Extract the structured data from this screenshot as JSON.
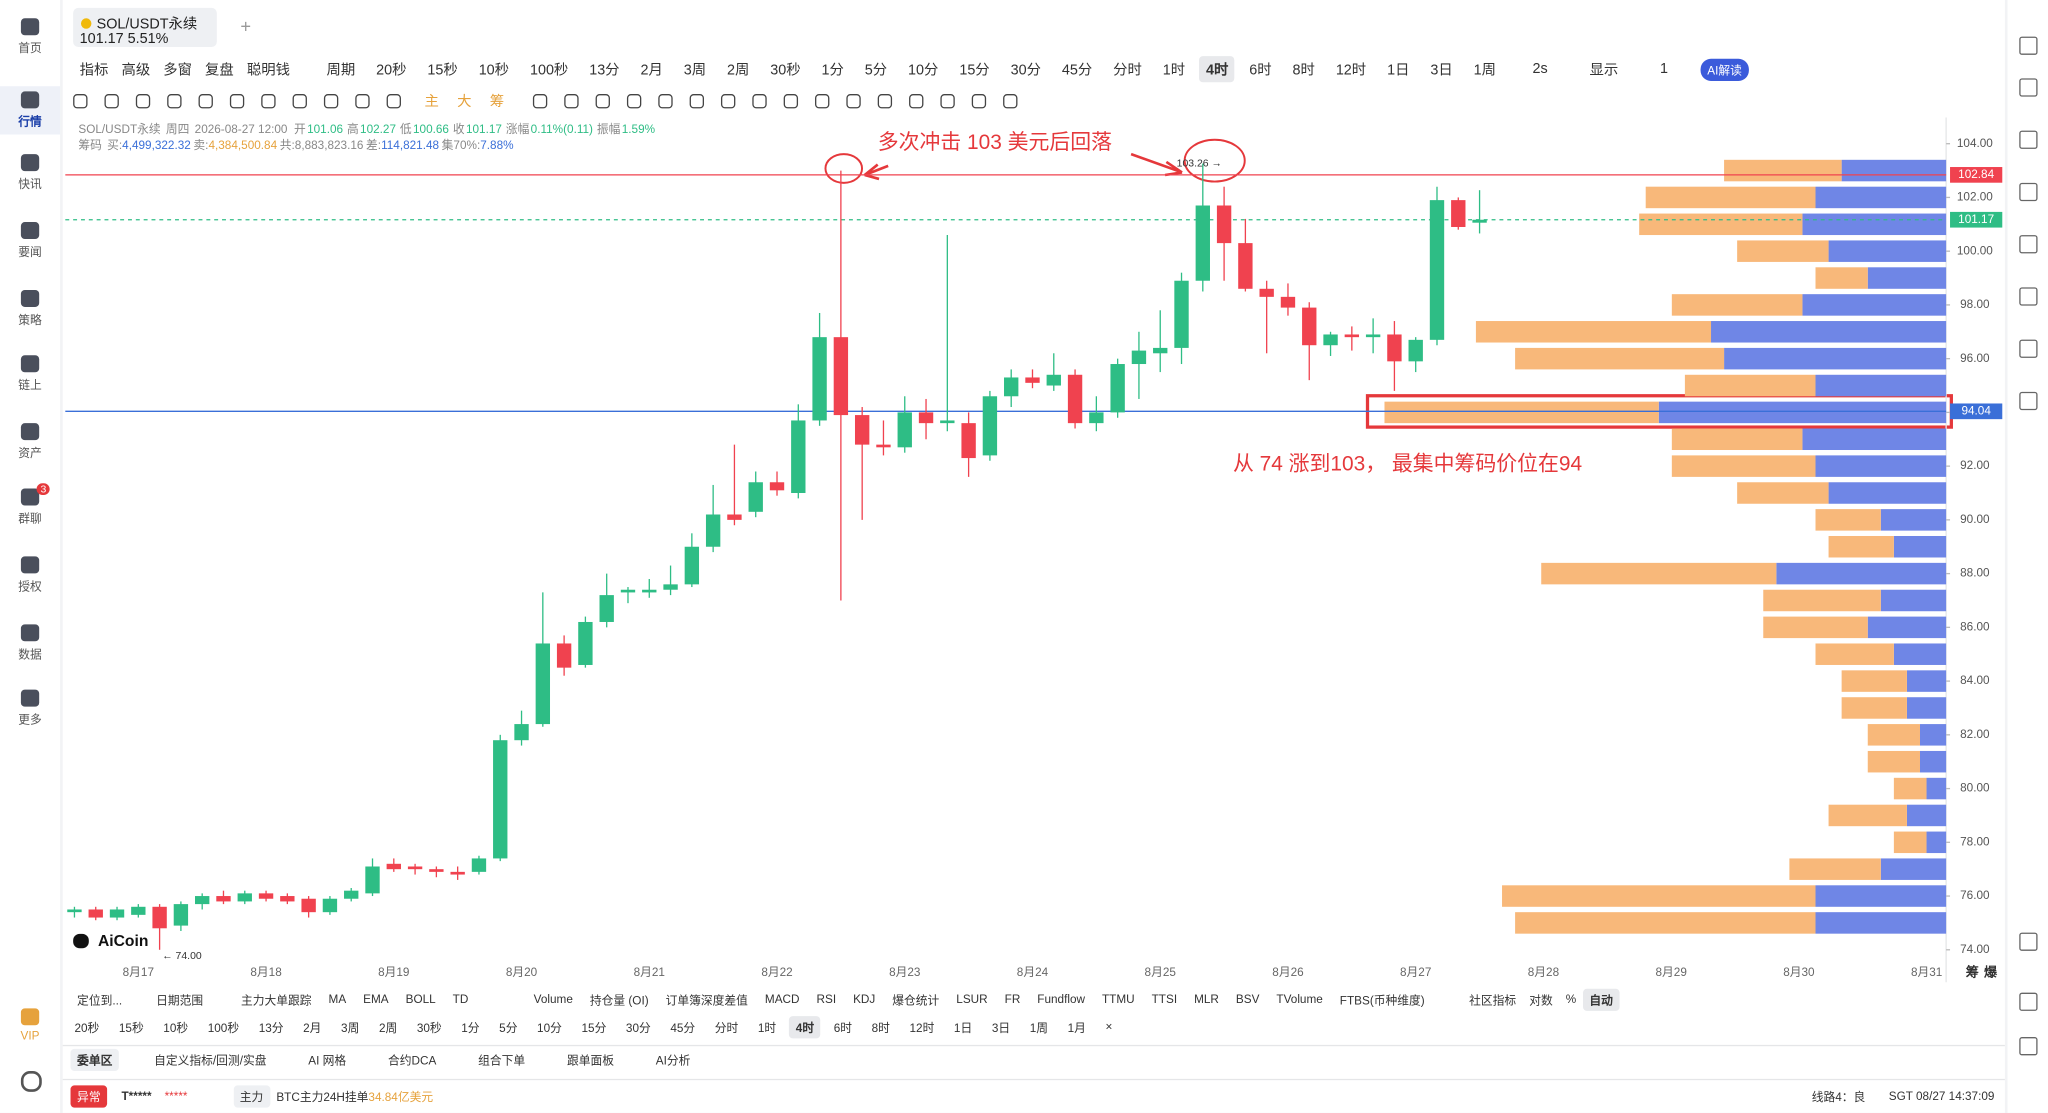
{
  "sidebar": [
    "首页",
    "行情",
    "快讯",
    "要闻",
    "策略",
    "链上",
    "资产",
    "群聊",
    "授权",
    "数据",
    "更多",
    "VIP"
  ],
  "sidebar_badge": "3",
  "tab": {
    "symbol": "SOL/USDT永续",
    "price": "101.17",
    "change": "5.51%"
  },
  "toolbar": {
    "tools": [
      "指标",
      "高级",
      "多窗",
      "复盘",
      "聪明钱",
      "周期"
    ],
    "periods": [
      "20秒",
      "15秒",
      "10秒",
      "100秒",
      "13分",
      "2月",
      "3周",
      "2周",
      "30秒",
      "1分",
      "5分",
      "10分",
      "15分",
      "30分",
      "45分",
      "分时",
      "1时",
      "4时",
      "6时",
      "8时",
      "12时",
      "1日",
      "3日",
      "1周"
    ],
    "selected_period": 17,
    "extra": [
      "2s",
      "显示",
      "1",
      "AI解读"
    ]
  },
  "draw_tools": [
    "主",
    "大",
    "筹"
  ],
  "info": {
    "symbol": "SOL/USDT永续",
    "day": "周四",
    "time": "2026-08-27 12:00",
    "fields": [
      [
        "开",
        "101.06"
      ],
      [
        "高",
        "102.27"
      ],
      [
        "低",
        "100.66"
      ],
      [
        "收",
        "101.17"
      ],
      [
        "涨幅",
        "0.11%(0.11)"
      ],
      [
        "振幅",
        "1.59%"
      ]
    ],
    "chips_label": "筹码",
    "chips": [
      [
        "买:",
        "4,499,322.32"
      ],
      [
        "卖:",
        "4,384,500.84"
      ],
      [
        "共:",
        "8,883,823.16"
      ],
      [
        "差:",
        "114,821.48"
      ],
      [
        "集70%:",
        "7.88%"
      ]
    ]
  },
  "chart_data": {
    "type": "candlestick",
    "categories": [
      null,
      null,
      null,
      "8月17",
      null,
      null,
      null,
      null,
      null,
      "8月18",
      null,
      null,
      null,
      null,
      null,
      "8月19",
      null,
      null,
      null,
      null,
      null,
      "8月20",
      null,
      null,
      null,
      null,
      null,
      "8月21",
      null,
      null,
      null,
      null,
      null,
      "8月22",
      null,
      null,
      null,
      null,
      null,
      "8月23",
      null,
      null,
      null,
      null,
      null,
      "8月24",
      null,
      null,
      null,
      null,
      null,
      "8月25",
      null,
      null,
      null,
      null,
      null,
      "8月26",
      null,
      null,
      null,
      null,
      null,
      "8月27",
      null,
      null,
      null,
      null,
      null,
      "8月28",
      null,
      null,
      null,
      null,
      null,
      "8月29",
      null,
      null,
      null,
      null,
      null,
      "8月30",
      null,
      null,
      null,
      null,
      null,
      "8月31"
    ],
    "open": [
      75.4,
      75.5,
      75.2,
      75.3,
      75.6,
      74.9,
      75.7,
      76.0,
      75.8,
      76.1,
      76.0,
      75.9,
      75.4,
      75.9,
      76.1,
      77.2,
      77.1,
      77.0,
      76.9,
      76.9,
      77.4,
      81.8,
      82.4,
      85.4,
      84.6,
      86.2,
      87.3,
      87.3,
      87.4,
      87.6,
      89.0,
      90.2,
      90.3,
      91.4,
      91.0,
      93.7,
      96.8,
      93.9,
      92.8,
      92.7,
      94.0,
      93.6,
      93.6,
      92.4,
      94.6,
      95.3,
      95.0,
      95.4,
      93.6,
      94.0,
      95.8,
      96.2,
      96.4,
      98.9,
      101.7,
      100.3,
      98.6,
      98.3,
      97.9,
      96.5,
      96.9,
      96.8,
      96.9,
      95.9,
      96.7,
      101.9,
      101.06,
      null,
      null,
      null,
      null,
      null,
      null,
      null,
      null,
      null,
      null,
      null,
      null,
      null,
      null,
      null,
      null,
      null,
      null,
      null,
      null,
      null
    ],
    "high": [
      75.6,
      75.6,
      75.6,
      75.7,
      75.7,
      75.8,
      76.1,
      76.2,
      76.2,
      76.2,
      76.1,
      76.0,
      76.0,
      76.3,
      77.4,
      77.4,
      77.2,
      77.1,
      77.1,
      77.5,
      82.0,
      82.9,
      87.3,
      85.7,
      86.4,
      88.0,
      87.5,
      87.8,
      88.3,
      89.5,
      91.3,
      92.8,
      91.8,
      91.8,
      94.3,
      97.7,
      103.0,
      94.2,
      93.7,
      94.6,
      94.5,
      100.6,
      94.0,
      94.8,
      95.6,
      95.6,
      96.2,
      95.6,
      94.6,
      96.0,
      97.0,
      97.8,
      99.2,
      103.26,
      102.4,
      101.2,
      98.9,
      98.8,
      98.1,
      97.0,
      97.2,
      97.5,
      97.4,
      96.8,
      102.4,
      102.0,
      102.27,
      null,
      null,
      null,
      null,
      null,
      null,
      null,
      null,
      null,
      null,
      null,
      null,
      null,
      null,
      null,
      null,
      null,
      null,
      null,
      null,
      null
    ],
    "low": [
      75.2,
      75.1,
      75.1,
      75.2,
      74.0,
      74.7,
      75.5,
      75.7,
      75.7,
      75.8,
      75.7,
      75.2,
      75.3,
      75.8,
      76.0,
      76.9,
      76.8,
      76.7,
      76.6,
      76.8,
      77.3,
      81.6,
      82.3,
      84.2,
      84.5,
      86.0,
      86.9,
      87.1,
      87.2,
      87.5,
      88.8,
      89.8,
      90.1,
      90.9,
      90.8,
      93.5,
      87.0,
      90.0,
      92.4,
      92.5,
      93.0,
      93.3,
      91.6,
      92.2,
      94.2,
      94.9,
      94.8,
      93.4,
      93.3,
      93.8,
      94.5,
      95.5,
      95.8,
      98.5,
      98.9,
      98.5,
      96.2,
      97.6,
      95.2,
      96.1,
      96.3,
      96.2,
      94.8,
      95.5,
      96.5,
      100.8,
      100.66,
      null,
      null,
      null,
      null,
      null,
      null,
      null,
      null,
      null,
      null,
      null,
      null,
      null,
      null,
      null,
      null,
      null,
      null,
      null,
      null,
      null
    ],
    "close": [
      75.5,
      75.2,
      75.5,
      75.6,
      74.8,
      75.7,
      76.0,
      75.8,
      76.1,
      75.9,
      75.8,
      75.4,
      75.9,
      76.2,
      77.1,
      77.0,
      77.0,
      76.9,
      76.8,
      77.4,
      81.8,
      82.4,
      85.4,
      84.5,
      86.2,
      87.2,
      87.4,
      87.4,
      87.6,
      89.0,
      90.2,
      90.0,
      91.4,
      91.1,
      93.7,
      96.8,
      93.9,
      92.8,
      92.7,
      94.0,
      93.6,
      93.7,
      92.3,
      94.6,
      95.3,
      95.1,
      95.4,
      93.6,
      94.0,
      95.8,
      96.3,
      96.4,
      98.9,
      101.7,
      100.3,
      98.6,
      98.3,
      97.9,
      96.5,
      96.9,
      96.8,
      96.9,
      95.9,
      96.7,
      101.9,
      100.9,
      101.17,
      null,
      null,
      null,
      null,
      null,
      null,
      null,
      null,
      null,
      null,
      null,
      null,
      null,
      null,
      null,
      null,
      null,
      null,
      null,
      null,
      null
    ],
    "up_color": "#2ebd85",
    "down_color": "#f0424f",
    "ylim": [
      73.62,
      104.73
    ],
    "yticks": [
      {
        "value": 74,
        "label": "74.00"
      },
      {
        "value": 76,
        "label": "76.00"
      },
      {
        "value": 78,
        "label": "78.00"
      },
      {
        "value": 80,
        "label": "80.00"
      },
      {
        "value": 82,
        "label": "82.00"
      },
      {
        "value": 84,
        "label": "84.00"
      },
      {
        "value": 86,
        "label": "86.00"
      },
      {
        "value": 88,
        "label": "88.00"
      },
      {
        "value": 90,
        "label": "90.00"
      },
      {
        "value": 92,
        "label": "92.00"
      },
      {
        "value": 94,
        "label": "94.00"
      },
      {
        "value": 96,
        "label": "96.00"
      },
      {
        "value": 98,
        "label": "98.00"
      },
      {
        "value": 100,
        "label": "100.00"
      },
      {
        "value": 102,
        "label": "102.00"
      },
      {
        "value": 104,
        "label": "104.00"
      }
    ],
    "grid": false,
    "price_lines": [
      {
        "value": 102.84,
        "color": "#f0424f"
      },
      {
        "value": 101.17,
        "color": "#2ebd85"
      },
      {
        "value": 94.04,
        "color": "#3a6fd8"
      }
    ],
    "high_label": "103.26 →",
    "low_label": "← 74.00",
    "annotations": [
      "多次冲击 103 美元后回落",
      "从 74 涨到103， 最集中筹码价位在94"
    ],
    "profile": {
      "prices": [
        103,
        102,
        101,
        100,
        99,
        98,
        97,
        96,
        95,
        94,
        93,
        92,
        91,
        90,
        89,
        88,
        87,
        86,
        85,
        84,
        83,
        82,
        81,
        80,
        79,
        78,
        77,
        76,
        75
      ],
      "sell": [
        90,
        130,
        125,
        70,
        40,
        100,
        180,
        160,
        100,
        210,
        100,
        110,
        70,
        50,
        50,
        180,
        90,
        80,
        60,
        50,
        50,
        40,
        40,
        25,
        60,
        25,
        70,
        240,
        230
      ],
      "buy": [
        80,
        100,
        110,
        90,
        60,
        110,
        180,
        170,
        100,
        220,
        110,
        100,
        90,
        50,
        40,
        130,
        50,
        60,
        40,
        30,
        30,
        20,
        20,
        15,
        30,
        15,
        50,
        100,
        100
      ],
      "sell_color": "#f8b87a",
      "buy_color": "#6f86e6"
    },
    "profile_labels": [
      "筹",
      "爆"
    ],
    "logo": "AiCoin"
  },
  "indicator_bar": {
    "left": [
      "定位到...",
      "日期范围"
    ],
    "items": [
      "主力大单跟踪",
      "MA",
      "EMA",
      "BOLL",
      "TD",
      "Volume",
      "持仓量 (OI)",
      "订单簿深度差值",
      "MACD",
      "RSI",
      "KDJ",
      "爆仓统计",
      "LSUR",
      "FR",
      "Fundflow",
      "TTMU",
      "TTSI",
      "MLR",
      "BSV",
      "TVolume",
      "FTBS(币种维度)"
    ],
    "right": [
      "社区指标",
      "对数",
      "%",
      "自动"
    ]
  },
  "period_bar": {
    "items": [
      "20秒",
      "15秒",
      "10秒",
      "100秒",
      "13分",
      "2月",
      "3周",
      "2周",
      "30秒",
      "1分",
      "5分",
      "10分",
      "15分",
      "30分",
      "45分",
      "分时",
      "1时",
      "4时",
      "6时",
      "8时",
      "12时",
      "1日",
      "3日",
      "1周",
      "1月",
      "×"
    ],
    "selected": 17
  },
  "panel_tabs": [
    "委单区",
    "自定义指标/回测/实盘",
    "AI 网格",
    "合约DCA",
    "组合下单",
    "跟单面板",
    "AI分析"
  ],
  "status": {
    "alert": "异常",
    "user": "T*****",
    "mask": "*****",
    "tag": "主力",
    "ticker": "BTC主力24H挂单",
    "amount": "34.84亿美元",
    "line": "线路4：良",
    "clock": "SGT 08/27 14:37:09"
  }
}
